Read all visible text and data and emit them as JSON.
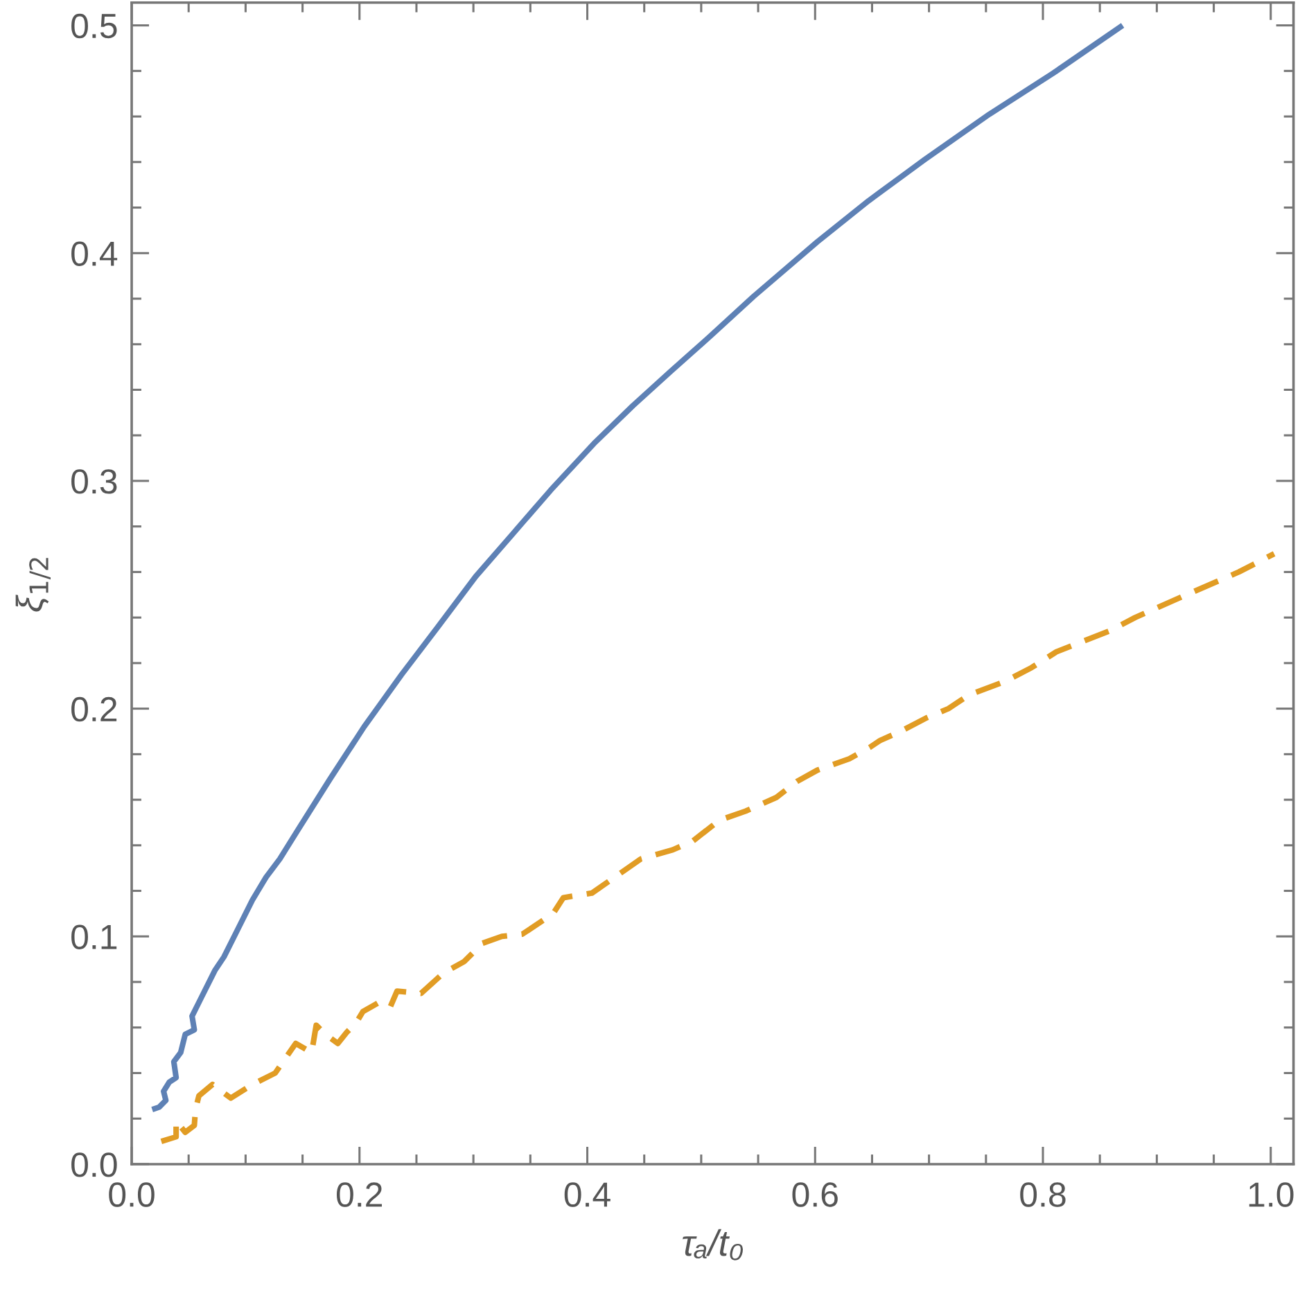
{
  "chart_data": {
    "type": "line",
    "xlabel": "τₐ/t₀",
    "ylabel": "ξ$_{1/2}$",
    "xlim": [
      0,
      1.02
    ],
    "ylim": [
      0,
      0.51
    ],
    "xticks": [
      {
        "value": 0,
        "label": "0.0"
      },
      {
        "value": 0.05,
        "label": null
      },
      {
        "value": 0.1,
        "label": null
      },
      {
        "value": 0.15,
        "label": null
      },
      0.2,
      {
        "value": 0.25,
        "label": null
      },
      {
        "value": 0.3,
        "label": null
      },
      {
        "value": 0.35,
        "label": null
      },
      0.4,
      {
        "value": 0.45,
        "label": null
      },
      {
        "value": 0.5,
        "label": null
      },
      {
        "value": 0.55,
        "label": null
      },
      0.6,
      {
        "value": 0.65,
        "label": null
      },
      {
        "value": 0.7,
        "label": null
      },
      {
        "value": 0.75,
        "label": null
      },
      0.8,
      {
        "value": 0.85,
        "label": null
      },
      {
        "value": 0.9,
        "label": null
      },
      {
        "value": 0.95,
        "label": null
      },
      {
        "value": 1.0,
        "label": "1.0"
      }
    ],
    "yticks": [
      {
        "value": 0,
        "label": "0.0"
      },
      {
        "value": 0.02,
        "label": null
      },
      {
        "value": 0.04,
        "label": null
      },
      {
        "value": 0.06,
        "label": null
      },
      {
        "value": 0.08,
        "label": null
      },
      0.1,
      {
        "value": 0.12,
        "label": null
      },
      {
        "value": 0.14,
        "label": null
      },
      {
        "value": 0.16,
        "label": null
      },
      {
        "value": 0.18,
        "label": null
      },
      0.2,
      {
        "value": 0.22,
        "label": null
      },
      {
        "value": 0.24,
        "label": null
      },
      {
        "value": 0.26,
        "label": null
      },
      {
        "value": 0.28,
        "label": null
      },
      0.3,
      {
        "value": 0.32,
        "label": null
      },
      {
        "value": 0.34,
        "label": null
      },
      {
        "value": 0.36,
        "label": null
      },
      {
        "value": 0.38,
        "label": null
      },
      0.4,
      {
        "value": 0.42,
        "label": null
      },
      {
        "value": 0.44,
        "label": null
      },
      {
        "value": 0.46,
        "label": null
      },
      {
        "value": 0.48,
        "label": null
      },
      0.5
    ],
    "series": [
      {
        "color": "#5e81b5",
        "line_style": "solid",
        "x": [
          0.018,
          0.024,
          0.03,
          0.028,
          0.033,
          0.039,
          0.037,
          0.043,
          0.047,
          0.055,
          0.053,
          0.061,
          0.073,
          0.081,
          0.093,
          0.106,
          0.118,
          0.13,
          0.145,
          0.174,
          0.204,
          0.237,
          0.269,
          0.302,
          0.335,
          0.368,
          0.407,
          0.44,
          0.473,
          0.509,
          0.546,
          0.602,
          0.647,
          0.696,
          0.753,
          0.809,
          0.87
        ],
        "values": [
          0.024,
          0.025,
          0.028,
          0.032,
          0.036,
          0.038,
          0.045,
          0.049,
          0.057,
          0.059,
          0.065,
          0.073,
          0.085,
          0.091,
          0.103,
          0.116,
          0.126,
          0.134,
          0.146,
          0.169,
          0.192,
          0.215,
          0.236,
          0.258,
          0.277,
          0.296,
          0.317,
          0.333,
          0.348,
          0.364,
          0.381,
          0.405,
          0.423,
          0.441,
          0.461,
          0.479,
          0.5
        ]
      },
      {
        "color": "#e19c24",
        "line_style": "dashed",
        "x": [
          0.026,
          0.039,
          0.039,
          0.047,
          0.055,
          0.056,
          0.059,
          0.071,
          0.087,
          0.106,
          0.126,
          0.144,
          0.158,
          0.162,
          0.17,
          0.181,
          0.189,
          0.197,
          0.203,
          0.217,
          0.227,
          0.233,
          0.254,
          0.274,
          0.292,
          0.308,
          0.325,
          0.343,
          0.37,
          0.379,
          0.404,
          0.447,
          0.475,
          0.493,
          0.516,
          0.539,
          0.566,
          0.584,
          0.602,
          0.63,
          0.648,
          0.657,
          0.675,
          0.698,
          0.717,
          0.735,
          0.767,
          0.79,
          0.812,
          0.858,
          0.881,
          0.926,
          0.972,
          1.003
        ],
        "values": [
          0.01,
          0.012,
          0.019,
          0.014,
          0.017,
          0.024,
          0.03,
          0.035,
          0.029,
          0.035,
          0.04,
          0.053,
          0.049,
          0.061,
          0.057,
          0.053,
          0.058,
          0.062,
          0.067,
          0.071,
          0.069,
          0.076,
          0.075,
          0.084,
          0.089,
          0.097,
          0.1,
          0.101,
          0.11,
          0.117,
          0.119,
          0.134,
          0.138,
          0.142,
          0.151,
          0.155,
          0.161,
          0.168,
          0.173,
          0.178,
          0.183,
          0.186,
          0.19,
          0.196,
          0.2,
          0.206,
          0.212,
          0.218,
          0.225,
          0.234,
          0.24,
          0.25,
          0.26,
          0.268
        ]
      }
    ]
  }
}
